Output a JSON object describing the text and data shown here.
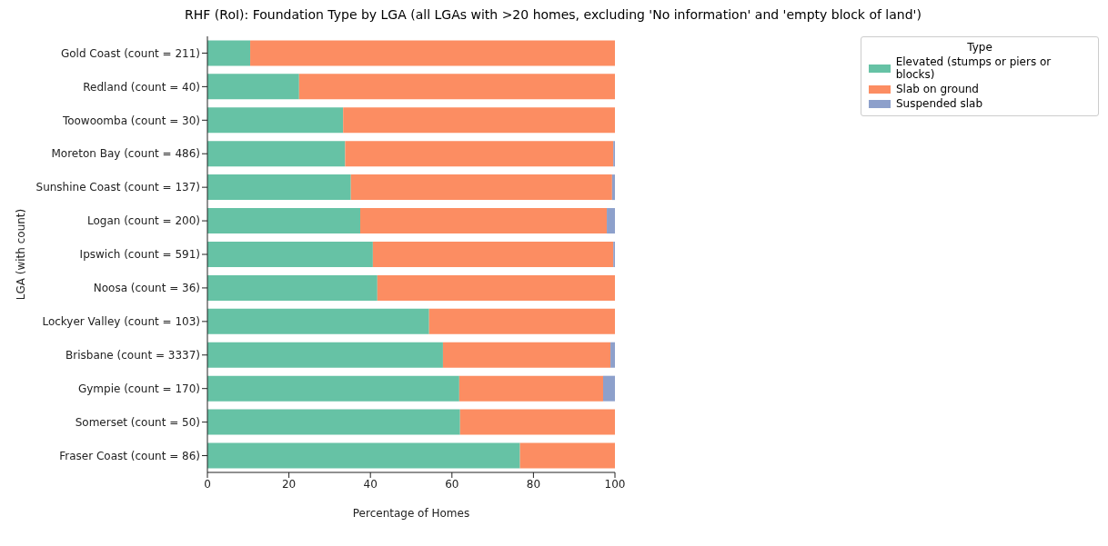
{
  "chart_data": {
    "type": "bar",
    "orientation": "horizontal",
    "stacked": true,
    "title": "RHF (RoI): Foundation Type by LGA (all LGAs with >20 homes, excluding 'No information' and 'empty block of land')",
    "xlabel": "Percentage of Homes",
    "ylabel": "LGA (with count)",
    "legend_title": "Type",
    "categories": [
      "Gold Coast (count = 211)",
      "Redland (count = 40)",
      "Toowoomba (count = 30)",
      "Moreton Bay (count = 486)",
      "Sunshine Coast (count = 137)",
      "Logan (count = 200)",
      "Ipswich (count = 591)",
      "Noosa (count = 36)",
      "Lockyer Valley (count = 103)",
      "Brisbane (count = 3337)",
      "Gympie (count = 170)",
      "Somerset (count = 50)",
      "Fraser Coast (count = 86)"
    ],
    "series": [
      {
        "name": "Elevated (stumps or piers or blocks)",
        "color": "#66c2a5",
        "values": [
          10.5,
          22.5,
          33.3,
          33.8,
          35.2,
          37.5,
          40.6,
          41.7,
          54.4,
          57.8,
          61.8,
          62.0,
          76.7
        ]
      },
      {
        "name": "Slab on ground",
        "color": "#fc8d62",
        "values": [
          89.5,
          77.5,
          66.7,
          65.8,
          64.1,
          60.5,
          59.0,
          58.3,
          45.6,
          41.1,
          35.3,
          38.0,
          23.3
        ]
      },
      {
        "name": "Suspended slab",
        "color": "#8da0cb",
        "values": [
          null,
          null,
          null,
          0.4,
          0.7,
          2.0,
          0.4,
          null,
          null,
          1.1,
          2.9,
          null,
          null
        ]
      }
    ],
    "xlim": [
      0,
      100
    ],
    "xticks": [
      0,
      20,
      40,
      60,
      80,
      100
    ],
    "grid": false,
    "legend": "top right"
  }
}
